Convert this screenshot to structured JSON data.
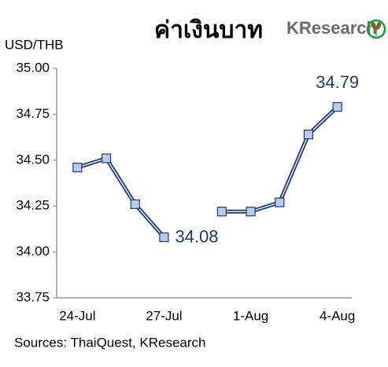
{
  "chart_data": {
    "type": "line",
    "title": "ค่าเงินบาท",
    "logo": "KResearch",
    "y_label": "USD/THB",
    "source": "Sources: ThaiQuest, KResearch",
    "categories": [
      "24-Jul",
      null,
      null,
      "27-Jul",
      null,
      null,
      "1-Aug",
      null,
      null,
      "4-Aug"
    ],
    "series": [
      {
        "name": "USD/THB",
        "color": "#1f3b6e",
        "marker_color": "#b7cbeb",
        "values": [
          34.46,
          34.51,
          34.26,
          34.08,
          null,
          34.22,
          34.22,
          34.27,
          34.64,
          34.79
        ],
        "value_labels": [
          null,
          null,
          null,
          "34.08",
          null,
          null,
          null,
          null,
          null,
          "34.79"
        ]
      }
    ],
    "ylim": [
      33.75,
      35.0
    ],
    "yticks": [
      {
        "value": 33.75,
        "label": "33.75"
      },
      {
        "value": 34.0,
        "label": "34.00"
      },
      {
        "value": 34.25,
        "label": "34.25"
      },
      {
        "value": 34.5,
        "label": "34.50"
      },
      {
        "value": 34.75,
        "label": "34.75"
      },
      {
        "value": 35.0,
        "label": "35.00"
      }
    ],
    "grid": false
  }
}
